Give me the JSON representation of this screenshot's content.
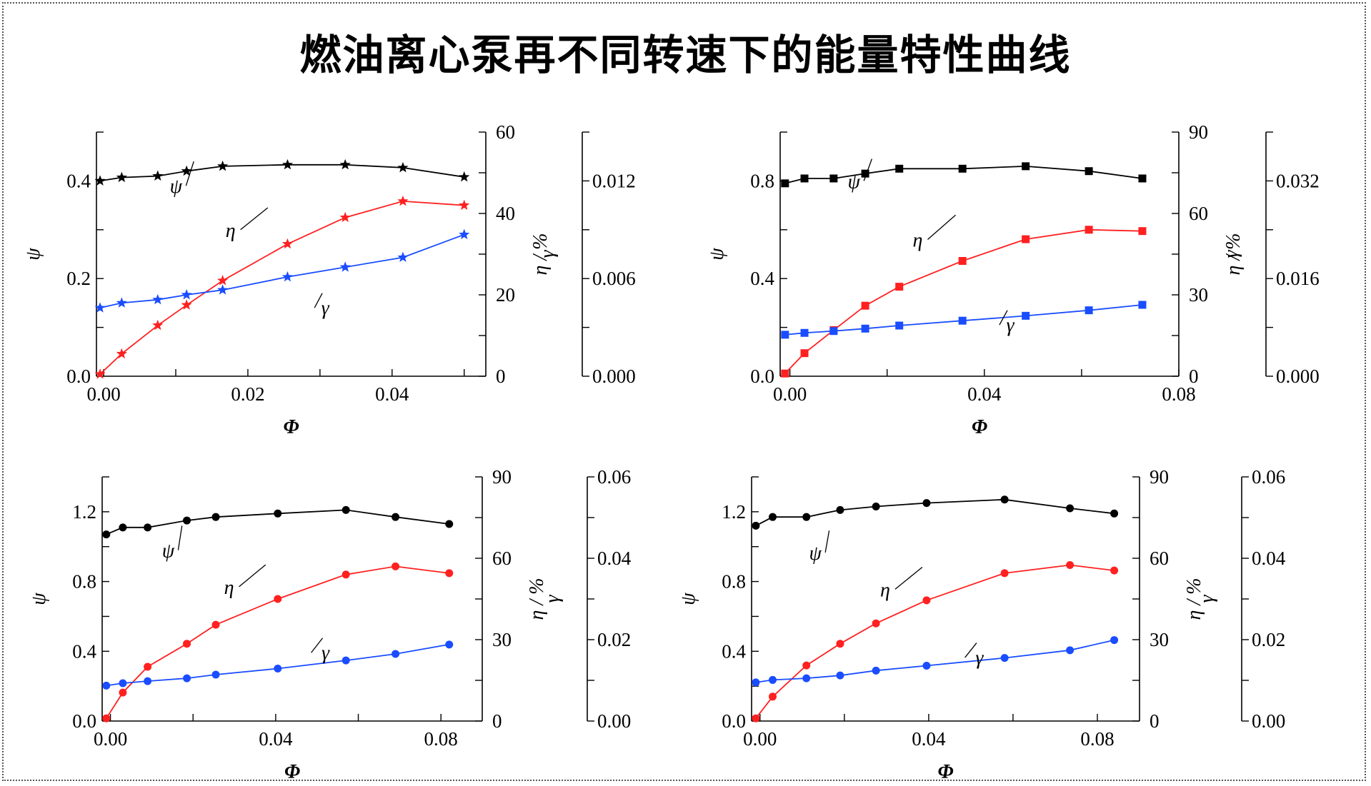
{
  "title": "燃油离心泵再不同转速下的能量特性曲线",
  "colors": {
    "psi": "#000000",
    "eta": "#ff2020",
    "gamma": "#1a4dff"
  },
  "chart_data": [
    {
      "type": "line",
      "marker": "star",
      "xlabel": "Φ",
      "ylabel_left": "ψ",
      "ylabel_mid": "η / %",
      "ylabel_right": "γ",
      "xlim": [
        -0.001,
        0.053
      ],
      "xticks": [
        "0.00",
        "0.02",
        "0.04"
      ],
      "xtick_values": [
        0,
        0.02,
        0.04
      ],
      "ylim_left": [
        0,
        0.5
      ],
      "yticks_left": [
        "0.0",
        "0.2",
        "0.4"
      ],
      "ytick_values_left": [
        0,
        0.2,
        0.4
      ],
      "ylim_mid": [
        0,
        60
      ],
      "yticks_mid": [
        "0",
        "20",
        "40",
        "60"
      ],
      "ytick_values_mid": [
        0,
        20,
        40,
        60
      ],
      "ylim_right": [
        0,
        0.015
      ],
      "yticks_right": [
        "0.000",
        "0.006",
        "0.012"
      ],
      "ytick_values_right": [
        0,
        0.006,
        0.012
      ],
      "series": [
        {
          "name": "ψ",
          "axis": "left",
          "color": "#000000",
          "x": [
            -0.0005,
            0.0025,
            0.0075,
            0.0115,
            0.0165,
            0.0255,
            0.0335,
            0.0415,
            0.05
          ],
          "y": [
            0.4,
            0.407,
            0.41,
            0.42,
            0.43,
            0.433,
            0.433,
            0.427,
            0.408
          ]
        },
        {
          "name": "η",
          "axis": "mid",
          "color": "#ff2020",
          "x": [
            -0.0005,
            0.0025,
            0.0075,
            0.0115,
            0.0165,
            0.0255,
            0.0335,
            0.0415,
            0.05
          ],
          "y": [
            0.5,
            5.5,
            12.5,
            17.5,
            23.5,
            32.5,
            39,
            43,
            42
          ]
        },
        {
          "name": "γ",
          "axis": "right",
          "color": "#1a4dff",
          "x": [
            -0.0005,
            0.0025,
            0.0075,
            0.0115,
            0.0165,
            0.0255,
            0.0335,
            0.0415,
            0.05
          ],
          "y": [
            0.0042,
            0.0045,
            0.0047,
            0.005,
            0.0053,
            0.0061,
            0.0067,
            0.0073,
            0.0087
          ]
        }
      ]
    },
    {
      "type": "line",
      "marker": "square",
      "xlabel": "Φ",
      "ylabel_left": "ψ",
      "ylabel_mid": "η / %",
      "ylabel_right": "γ",
      "xlim": [
        -0.002,
        0.08
      ],
      "xticks": [
        "0.00",
        "0.04",
        "0.08"
      ],
      "xtick_values": [
        0,
        0.04,
        0.08
      ],
      "ylim_left": [
        0,
        1.0
      ],
      "yticks_left": [
        "0.0",
        "0.4",
        "0.8"
      ],
      "ytick_values_left": [
        0,
        0.4,
        0.8
      ],
      "ylim_mid": [
        0,
        90
      ],
      "yticks_mid": [
        "0",
        "30",
        "60",
        "90"
      ],
      "ytick_values_mid": [
        0,
        30,
        60,
        90
      ],
      "ylim_right": [
        0,
        0.04
      ],
      "yticks_right": [
        "0.000",
        "0.016",
        "0.032"
      ],
      "ytick_values_right": [
        0,
        0.016,
        0.032
      ],
      "series": [
        {
          "name": "ψ",
          "axis": "left",
          "color": "#000000",
          "x": [
            -0.001,
            0.003,
            0.009,
            0.0155,
            0.0225,
            0.0355,
            0.0485,
            0.0615,
            0.0725
          ],
          "y": [
            0.79,
            0.81,
            0.81,
            0.83,
            0.85,
            0.85,
            0.86,
            0.84,
            0.81
          ]
        },
        {
          "name": "η",
          "axis": "mid",
          "color": "#ff2020",
          "x": [
            -0.001,
            0.003,
            0.009,
            0.0155,
            0.0225,
            0.0355,
            0.0485,
            0.0615,
            0.0725
          ],
          "y": [
            1,
            8.5,
            17,
            26,
            33,
            42.5,
            50.5,
            54,
            53.5
          ]
        },
        {
          "name": "γ",
          "axis": "right",
          "color": "#1a4dff",
          "x": [
            -0.001,
            0.003,
            0.009,
            0.0155,
            0.0225,
            0.0355,
            0.0485,
            0.0615,
            0.0725
          ],
          "y": [
            0.0068,
            0.0071,
            0.0074,
            0.0078,
            0.0083,
            0.0091,
            0.0099,
            0.0108,
            0.0117
          ]
        }
      ]
    },
    {
      "type": "line",
      "marker": "circle",
      "xlabel": "Φ",
      "ylabel_left": "ψ",
      "ylabel_mid": "η / %",
      "ylabel_right": "γ",
      "xlim": [
        -0.002,
        0.09
      ],
      "xticks": [
        "0.00",
        "0.04",
        "0.08"
      ],
      "xtick_values": [
        0,
        0.04,
        0.08
      ],
      "ylim_left": [
        0,
        1.4
      ],
      "yticks_left": [
        "0.0",
        "0.4",
        "0.8",
        "1.2"
      ],
      "ytick_values_left": [
        0,
        0.4,
        0.8,
        1.2
      ],
      "ylim_mid": [
        0,
        90
      ],
      "yticks_mid": [
        "0",
        "30",
        "60",
        "90"
      ],
      "ytick_values_mid": [
        0,
        30,
        60,
        90
      ],
      "ylim_right": [
        0,
        0.06
      ],
      "yticks_right": [
        "0.00",
        "0.02",
        "0.04",
        "0.06"
      ],
      "ytick_values_right": [
        0,
        0.02,
        0.04,
        0.06
      ],
      "series": [
        {
          "name": "ψ",
          "axis": "left",
          "color": "#000000",
          "x": [
            -0.001,
            0.003,
            0.009,
            0.0185,
            0.0255,
            0.0405,
            0.057,
            0.069,
            0.082
          ],
          "y": [
            1.07,
            1.11,
            1.11,
            1.15,
            1.17,
            1.19,
            1.21,
            1.17,
            1.13
          ]
        },
        {
          "name": "η",
          "axis": "mid",
          "color": "#ff2020",
          "x": [
            -0.001,
            0.003,
            0.009,
            0.0185,
            0.0255,
            0.0405,
            0.057,
            0.069,
            0.082
          ],
          "y": [
            1,
            10.5,
            20,
            28.5,
            35.5,
            45,
            54,
            57,
            54.5
          ]
        },
        {
          "name": "γ",
          "axis": "right",
          "color": "#1a4dff",
          "x": [
            -0.001,
            0.003,
            0.009,
            0.0185,
            0.0255,
            0.0405,
            0.057,
            0.069,
            0.082
          ],
          "y": [
            0.0087,
            0.0093,
            0.0098,
            0.0105,
            0.0114,
            0.0129,
            0.0149,
            0.0165,
            0.0188
          ]
        }
      ]
    },
    {
      "type": "line",
      "marker": "circle",
      "xlabel": "Φ",
      "ylabel_left": "ψ",
      "ylabel_mid": "η / %",
      "ylabel_right": "γ",
      "xlim": [
        -0.002,
        0.09
      ],
      "xticks": [
        "0.00",
        "0.04",
        "0.08"
      ],
      "xtick_values": [
        0,
        0.04,
        0.08
      ],
      "ylim_left": [
        0,
        1.4
      ],
      "yticks_left": [
        "0.0",
        "0.4",
        "0.8",
        "1.2"
      ],
      "ytick_values_left": [
        0,
        0.4,
        0.8,
        1.2
      ],
      "ylim_mid": [
        0,
        90
      ],
      "yticks_mid": [
        "0",
        "30",
        "60",
        "90"
      ],
      "ytick_values_mid": [
        0,
        30,
        60,
        90
      ],
      "ylim_right": [
        0,
        0.06
      ],
      "yticks_right": [
        "0.00",
        "0.02",
        "0.04",
        "0.06"
      ],
      "ytick_values_right": [
        0,
        0.02,
        0.04,
        0.06
      ],
      "series": [
        {
          "name": "ψ",
          "axis": "left",
          "color": "#000000",
          "x": [
            -0.001,
            0.003,
            0.011,
            0.019,
            0.0275,
            0.0395,
            0.058,
            0.0735,
            0.084
          ],
          "y": [
            1.12,
            1.17,
            1.17,
            1.21,
            1.23,
            1.25,
            1.27,
            1.22,
            1.19
          ]
        },
        {
          "name": "η",
          "axis": "mid",
          "color": "#ff2020",
          "x": [
            -0.001,
            0.003,
            0.011,
            0.019,
            0.0275,
            0.0395,
            0.058,
            0.0735,
            0.084
          ],
          "y": [
            1,
            9,
            20.5,
            28.5,
            36,
            44.5,
            54.5,
            57.5,
            55.5
          ]
        },
        {
          "name": "γ",
          "axis": "right",
          "color": "#1a4dff",
          "x": [
            -0.001,
            0.003,
            0.011,
            0.019,
            0.0275,
            0.0395,
            0.058,
            0.0735,
            0.084
          ],
          "y": [
            0.0095,
            0.0101,
            0.0105,
            0.0112,
            0.0124,
            0.0136,
            0.0155,
            0.0174,
            0.0199
          ]
        }
      ]
    }
  ]
}
